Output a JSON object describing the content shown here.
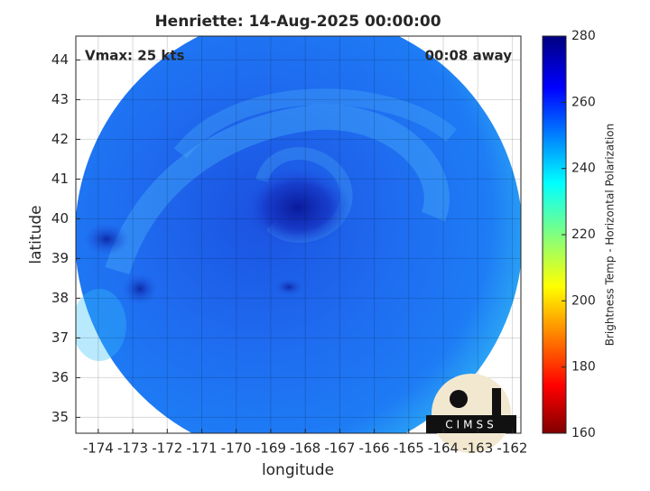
{
  "chart_data": {
    "type": "map",
    "title": "Henriette: 14-Aug-2025 00:00:00",
    "annotations": {
      "left": "Vmax: 25 kts",
      "right": "00:08 away"
    },
    "xlabel": "longitude",
    "ylabel": "latitude",
    "xlim": [
      -174.65,
      -161.75
    ],
    "ylim": [
      34.6,
      44.6
    ],
    "xticks": [
      -174,
      -173,
      -172,
      -171,
      -170,
      -169,
      -168,
      -167,
      -166,
      -165,
      -164,
      -163,
      -162
    ],
    "yticks": [
      35,
      36,
      37,
      38,
      39,
      40,
      41,
      42,
      43,
      44
    ],
    "grid": true,
    "colorbar": {
      "label": "Brightness Temp - Horizontal Polarization",
      "lim": [
        160,
        280
      ],
      "ticks": [
        160,
        180,
        200,
        220,
        240,
        260,
        280
      ]
    },
    "logo": "CIMSS"
  }
}
